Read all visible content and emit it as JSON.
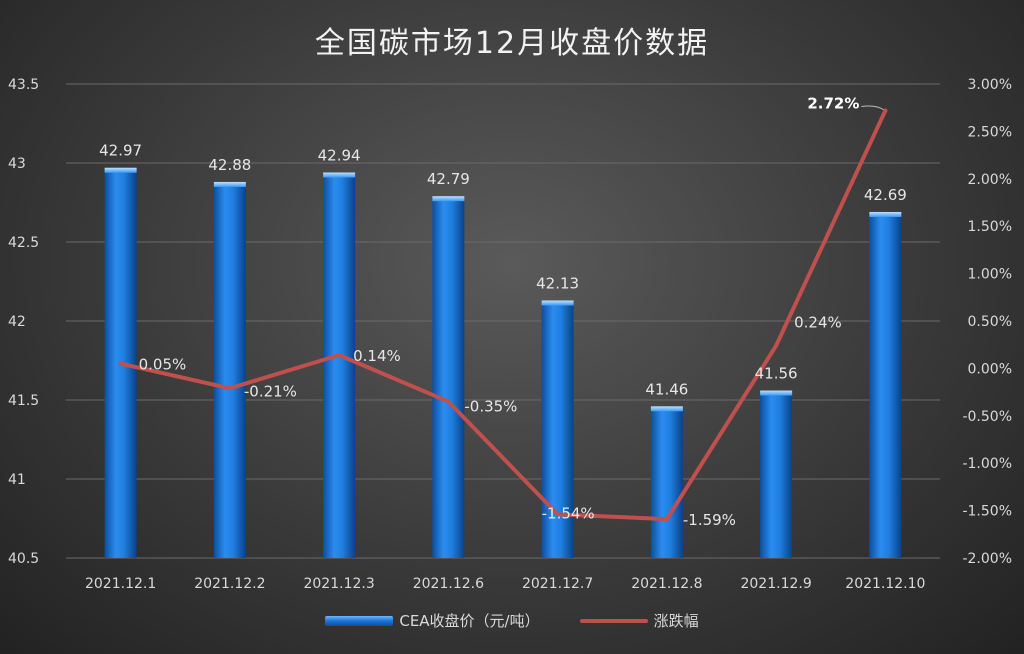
{
  "chart_data": {
    "type": "bar+line",
    "title": "全国碳市场12月收盘价数据",
    "categories": [
      "2021.12.1",
      "2021.12.2",
      "2021.12.3",
      "2021.12.6",
      "2021.12.7",
      "2021.12.8",
      "2021.12.9",
      "2021.12.10"
    ],
    "series": [
      {
        "name": "CEA收盘价（元/吨）",
        "type": "bar",
        "axis": "left",
        "values": [
          42.97,
          42.88,
          42.94,
          42.79,
          42.13,
          41.46,
          41.56,
          42.69
        ],
        "labels": [
          "42.97",
          "42.88",
          "42.94",
          "42.79",
          "42.13",
          "41.46",
          "41.56",
          "42.69"
        ],
        "color": "#1f7fe0"
      },
      {
        "name": "涨跌幅",
        "type": "line",
        "axis": "right",
        "values": [
          0.05,
          -0.21,
          0.14,
          -0.35,
          -1.54,
          -1.59,
          0.24,
          2.72
        ],
        "labels": [
          "0.05%",
          "-0.21%",
          "0.14%",
          "-0.35%",
          "-1.54%",
          "-1.59%",
          "0.24%",
          "2.72%"
        ],
        "color": "#c0504d"
      }
    ],
    "y_left": {
      "min": 40.5,
      "max": 43.5,
      "ticks": [
        "40.5",
        "41",
        "41.5",
        "42",
        "42.5",
        "43",
        "43.5"
      ]
    },
    "y_right": {
      "min": -2.0,
      "max": 3.0,
      "ticks": [
        "-2.00%",
        "-1.50%",
        "-1.00%",
        "-0.50%",
        "0.00%",
        "0.50%",
        "1.00%",
        "1.50%",
        "2.00%",
        "2.50%",
        "3.00%"
      ]
    },
    "grid": true,
    "legend": "bottom"
  }
}
